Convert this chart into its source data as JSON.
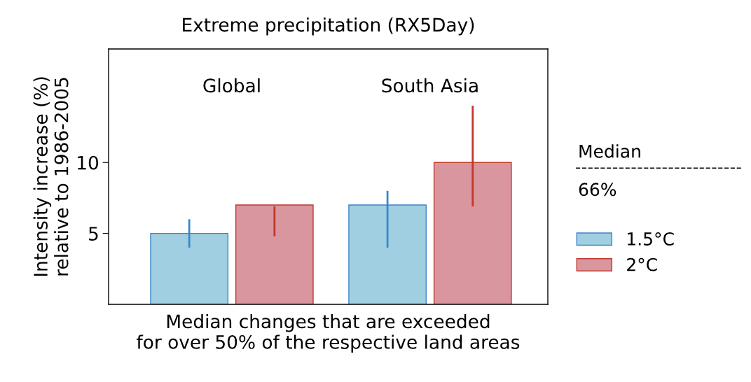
{
  "chart_data": {
    "type": "bar",
    "title": "Extreme precipitation (RX5Day)",
    "xlabel": "Median changes that are exceeded\nfor over 50% of the respective land areas",
    "ylabel": "Intensity increase (%)\nrelative to 1986-2005",
    "categories": [
      "Global",
      "South Asia"
    ],
    "series": [
      {
        "name": "1.5°C",
        "color": "#a0cfe1",
        "values": [
          5.0,
          7.0
        ],
        "errors": [
          [
            4.0,
            6.0
          ],
          [
            4.0,
            8.0
          ]
        ]
      },
      {
        "name": "2°C",
        "color": "#d9969f",
        "values": [
          7.0,
          10.0
        ],
        "errors": [
          [
            4.8,
            6.9
          ],
          [
            6.9,
            14.0
          ]
        ]
      }
    ],
    "ylim": [
      0,
      18
    ],
    "yticks": [
      5,
      10
    ],
    "grid": false,
    "legend": "right",
    "annotations": [
      "Median",
      "66%"
    ]
  }
}
